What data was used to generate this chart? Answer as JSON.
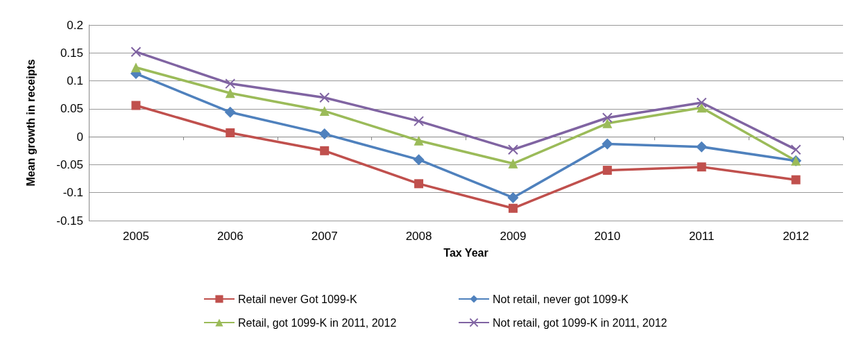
{
  "chart_data": {
    "type": "line",
    "xlabel": "Tax Year",
    "ylabel": "Mean growth in receipts",
    "categories": [
      "2005",
      "2006",
      "2007",
      "2008",
      "2009",
      "2010",
      "2011",
      "2012"
    ],
    "series": [
      {
        "name": "Retail never Got 1099-K",
        "color": "#c0504d",
        "marker": "square",
        "values": [
          0.056,
          0.007,
          -0.025,
          -0.084,
          -0.128,
          -0.06,
          -0.054,
          -0.077
        ]
      },
      {
        "name": "Not retail, never got 1099-K",
        "color": "#4f81bd",
        "marker": "diamond",
        "values": [
          0.113,
          0.044,
          0.005,
          -0.041,
          -0.109,
          -0.013,
          -0.018,
          -0.043
        ]
      },
      {
        "name": "Retail, got 1099-K in 2011, 2012",
        "color": "#9bbb59",
        "marker": "triangle",
        "values": [
          0.124,
          0.078,
          0.046,
          -0.007,
          -0.048,
          0.024,
          0.052,
          -0.043
        ]
      },
      {
        "name": "Not retail, got 1099-K in 2011, 2012",
        "color": "#8064a2",
        "marker": "cross",
        "values": [
          0.152,
          0.095,
          0.07,
          0.028,
          -0.023,
          0.034,
          0.061,
          -0.023
        ]
      }
    ],
    "ylim": [
      -0.15,
      0.2
    ],
    "yticks": [
      -0.15,
      -0.1,
      -0.05,
      0,
      0.05,
      0.1,
      0.15,
      0.2
    ],
    "grid": "y",
    "legend": "bottom",
    "line_style": "solid"
  }
}
